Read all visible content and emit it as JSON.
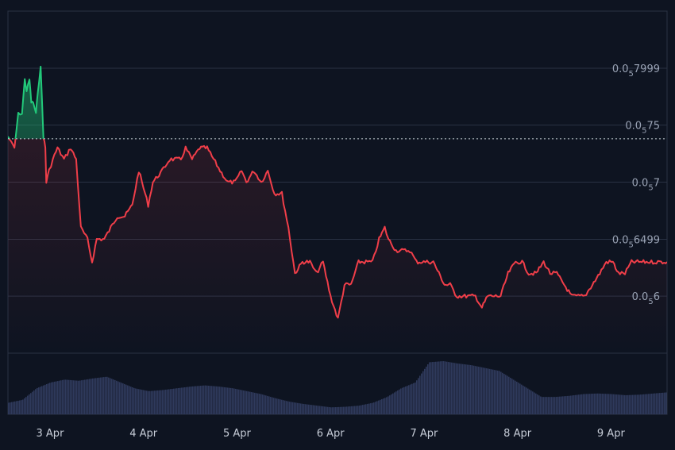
{
  "chart_data": {
    "type": "line",
    "title": "",
    "xlabel": "",
    "ylabel": "",
    "colors": {
      "background": "#0e1421",
      "up_line": "#22c97a",
      "down_line": "#f03e49",
      "grid": "#2a3244",
      "baseline_dotted": "#c9cdd6",
      "volume": "#2f3a5c"
    },
    "y_axis": {
      "side": "right",
      "grid": true,
      "subscript_zeros": "5",
      "ticks": [
        {
          "value": 7.999e-06,
          "prefix": "0.0",
          "sub": "5",
          "suffix": "7999"
        },
        {
          "value": 7.5e-06,
          "prefix": "0.0",
          "sub": "5",
          "suffix": "75"
        },
        {
          "value": 7e-06,
          "prefix": "0.0",
          "sub": "5",
          "suffix": "7"
        },
        {
          "value": 6.499e-06,
          "prefix": "0.0",
          "sub": "5",
          "suffix": "6499"
        },
        {
          "value": 6e-06,
          "prefix": "0.0",
          "sub": "5",
          "suffix": "6"
        }
      ],
      "ylim": [
        5.5e-06,
        8.5e-06
      ]
    },
    "x_axis": {
      "ticks": [
        {
          "label": "3 Apr",
          "t": 1.0
        },
        {
          "label": "4 Apr",
          "t": 2.0
        },
        {
          "label": "5 Apr",
          "t": 3.0
        },
        {
          "label": "6 Apr",
          "t": 4.0
        },
        {
          "label": "7 Apr",
          "t": 5.0
        },
        {
          "label": "8 Apr",
          "t": 6.0
        },
        {
          "label": "9 Apr",
          "t": 7.0
        }
      ],
      "xlim": [
        0.55,
        7.6
      ]
    },
    "baseline": 7.38e-06,
    "series": [
      {
        "x": [
          0.55,
          0.62,
          0.66,
          0.7,
          0.73,
          0.75,
          0.78,
          0.8,
          0.82,
          0.85,
          0.87,
          0.9,
          0.93,
          0.95,
          0.96,
          0.99,
          1.03,
          1.08,
          1.15,
          1.22,
          1.28,
          1.33,
          1.4,
          1.45,
          1.5,
          1.58,
          1.65,
          1.72,
          1.8,
          1.88,
          1.95,
          2.05,
          2.1,
          2.2,
          2.28,
          2.35,
          2.4,
          2.45,
          2.52,
          2.6,
          2.68,
          2.75,
          2.82,
          2.9,
          2.98,
          3.05,
          3.1,
          3.18,
          3.26,
          3.33,
          3.4,
          3.48,
          3.55,
          3.62,
          3.7,
          3.78,
          3.85,
          3.92,
          4.0,
          4.08,
          4.15,
          4.22,
          4.3,
          4.38,
          4.45,
          4.52,
          4.58,
          4.62,
          4.7,
          4.78,
          4.85,
          4.92,
          4.98,
          5.05,
          5.1,
          5.16,
          5.22,
          5.28,
          5.35,
          5.38,
          5.42,
          5.5,
          5.55,
          5.62,
          5.68,
          5.75,
          5.82,
          5.9,
          5.98,
          6.05,
          6.12,
          6.2,
          6.28,
          6.35,
          6.42,
          6.5,
          6.58,
          6.65,
          6.72,
          6.8,
          6.88,
          6.95,
          7.02,
          7.08,
          7.15,
          7.22,
          7.3,
          7.38,
          7.45,
          7.52,
          7.6
        ],
        "y": [
          7.4e-06,
          7.3e-06,
          7.6e-06,
          7.6e-06,
          7.9e-06,
          7.8e-06,
          7.9e-06,
          7.7e-06,
          7.7e-06,
          7.6e-06,
          7.8e-06,
          8e-06,
          7.4e-06,
          7.3e-06,
          7e-06,
          7.1e-06,
          7.2e-06,
          7.3e-06,
          7.2e-06,
          7.3e-06,
          7.2e-06,
          6.6e-06,
          6.5e-06,
          6.3e-06,
          6.5e-06,
          6.5e-06,
          6.6e-06,
          6.7e-06,
          6.7e-06,
          6.8e-06,
          7.1e-06,
          6.8e-06,
          7e-06,
          7.1e-06,
          7.2e-06,
          7.2e-06,
          7.2e-06,
          7.3e-06,
          7.2e-06,
          7.3e-06,
          7.3e-06,
          7.2e-06,
          7.1e-06,
          7e-06,
          7e-06,
          7.1e-06,
          7e-06,
          7.1e-06,
          7e-06,
          7.1e-06,
          6.9e-06,
          6.9e-06,
          6.6e-06,
          6.2e-06,
          6.3e-06,
          6.3e-06,
          6.2e-06,
          6.3e-06,
          6e-06,
          5.8e-06,
          6.1e-06,
          6.1e-06,
          6.3e-06,
          6.3e-06,
          6.3e-06,
          6.5e-06,
          6.6e-06,
          6.5e-06,
          6.4e-06,
          6.4e-06,
          6.4e-06,
          6.3e-06,
          6.3e-06,
          6.3e-06,
          6.3e-06,
          6.2e-06,
          6.1e-06,
          6.1e-06,
          6e-06,
          6e-06,
          6e-06,
          6e-06,
          6e-06,
          5.9e-06,
          6e-06,
          6e-06,
          6e-06,
          6.2e-06,
          6.3e-06,
          6.3e-06,
          6.2e-06,
          6.2e-06,
          6.3e-06,
          6.2e-06,
          6.2e-06,
          6.1e-06,
          6e-06,
          6e-06,
          6e-06,
          6.1e-06,
          6.2e-06,
          6.3e-06,
          6.3e-06,
          6.2e-06,
          6.2e-06,
          6.3e-06,
          6.3e-06,
          6.3e-06,
          6.3e-06,
          6.3e-06,
          6.3e-06
        ]
      },
      {
        "type": "volume",
        "x": [
          0.55,
          0.7,
          0.85,
          1.0,
          1.15,
          1.3,
          1.45,
          1.6,
          1.75,
          1.9,
          2.05,
          2.2,
          2.35,
          2.5,
          2.65,
          2.8,
          2.95,
          3.1,
          3.25,
          3.4,
          3.55,
          3.7,
          3.85,
          4.0,
          4.15,
          4.3,
          4.45,
          4.6,
          4.75,
          4.9,
          5.05,
          5.2,
          5.35,
          5.5,
          5.65,
          5.8,
          5.95,
          6.1,
          6.25,
          6.4,
          6.55,
          6.7,
          6.85,
          7.0,
          7.15,
          7.3,
          7.45,
          7.6
        ],
        "values": [
          0.2,
          0.25,
          0.45,
          0.55,
          0.6,
          0.58,
          0.62,
          0.65,
          0.55,
          0.45,
          0.4,
          0.42,
          0.45,
          0.48,
          0.5,
          0.48,
          0.45,
          0.4,
          0.35,
          0.28,
          0.22,
          0.18,
          0.15,
          0.12,
          0.13,
          0.15,
          0.2,
          0.3,
          0.45,
          0.55,
          0.9,
          0.92,
          0.88,
          0.85,
          0.8,
          0.75,
          0.6,
          0.45,
          0.3,
          0.3,
          0.32,
          0.35,
          0.36,
          0.35,
          0.33,
          0.34,
          0.36,
          0.38
        ]
      }
    ]
  }
}
